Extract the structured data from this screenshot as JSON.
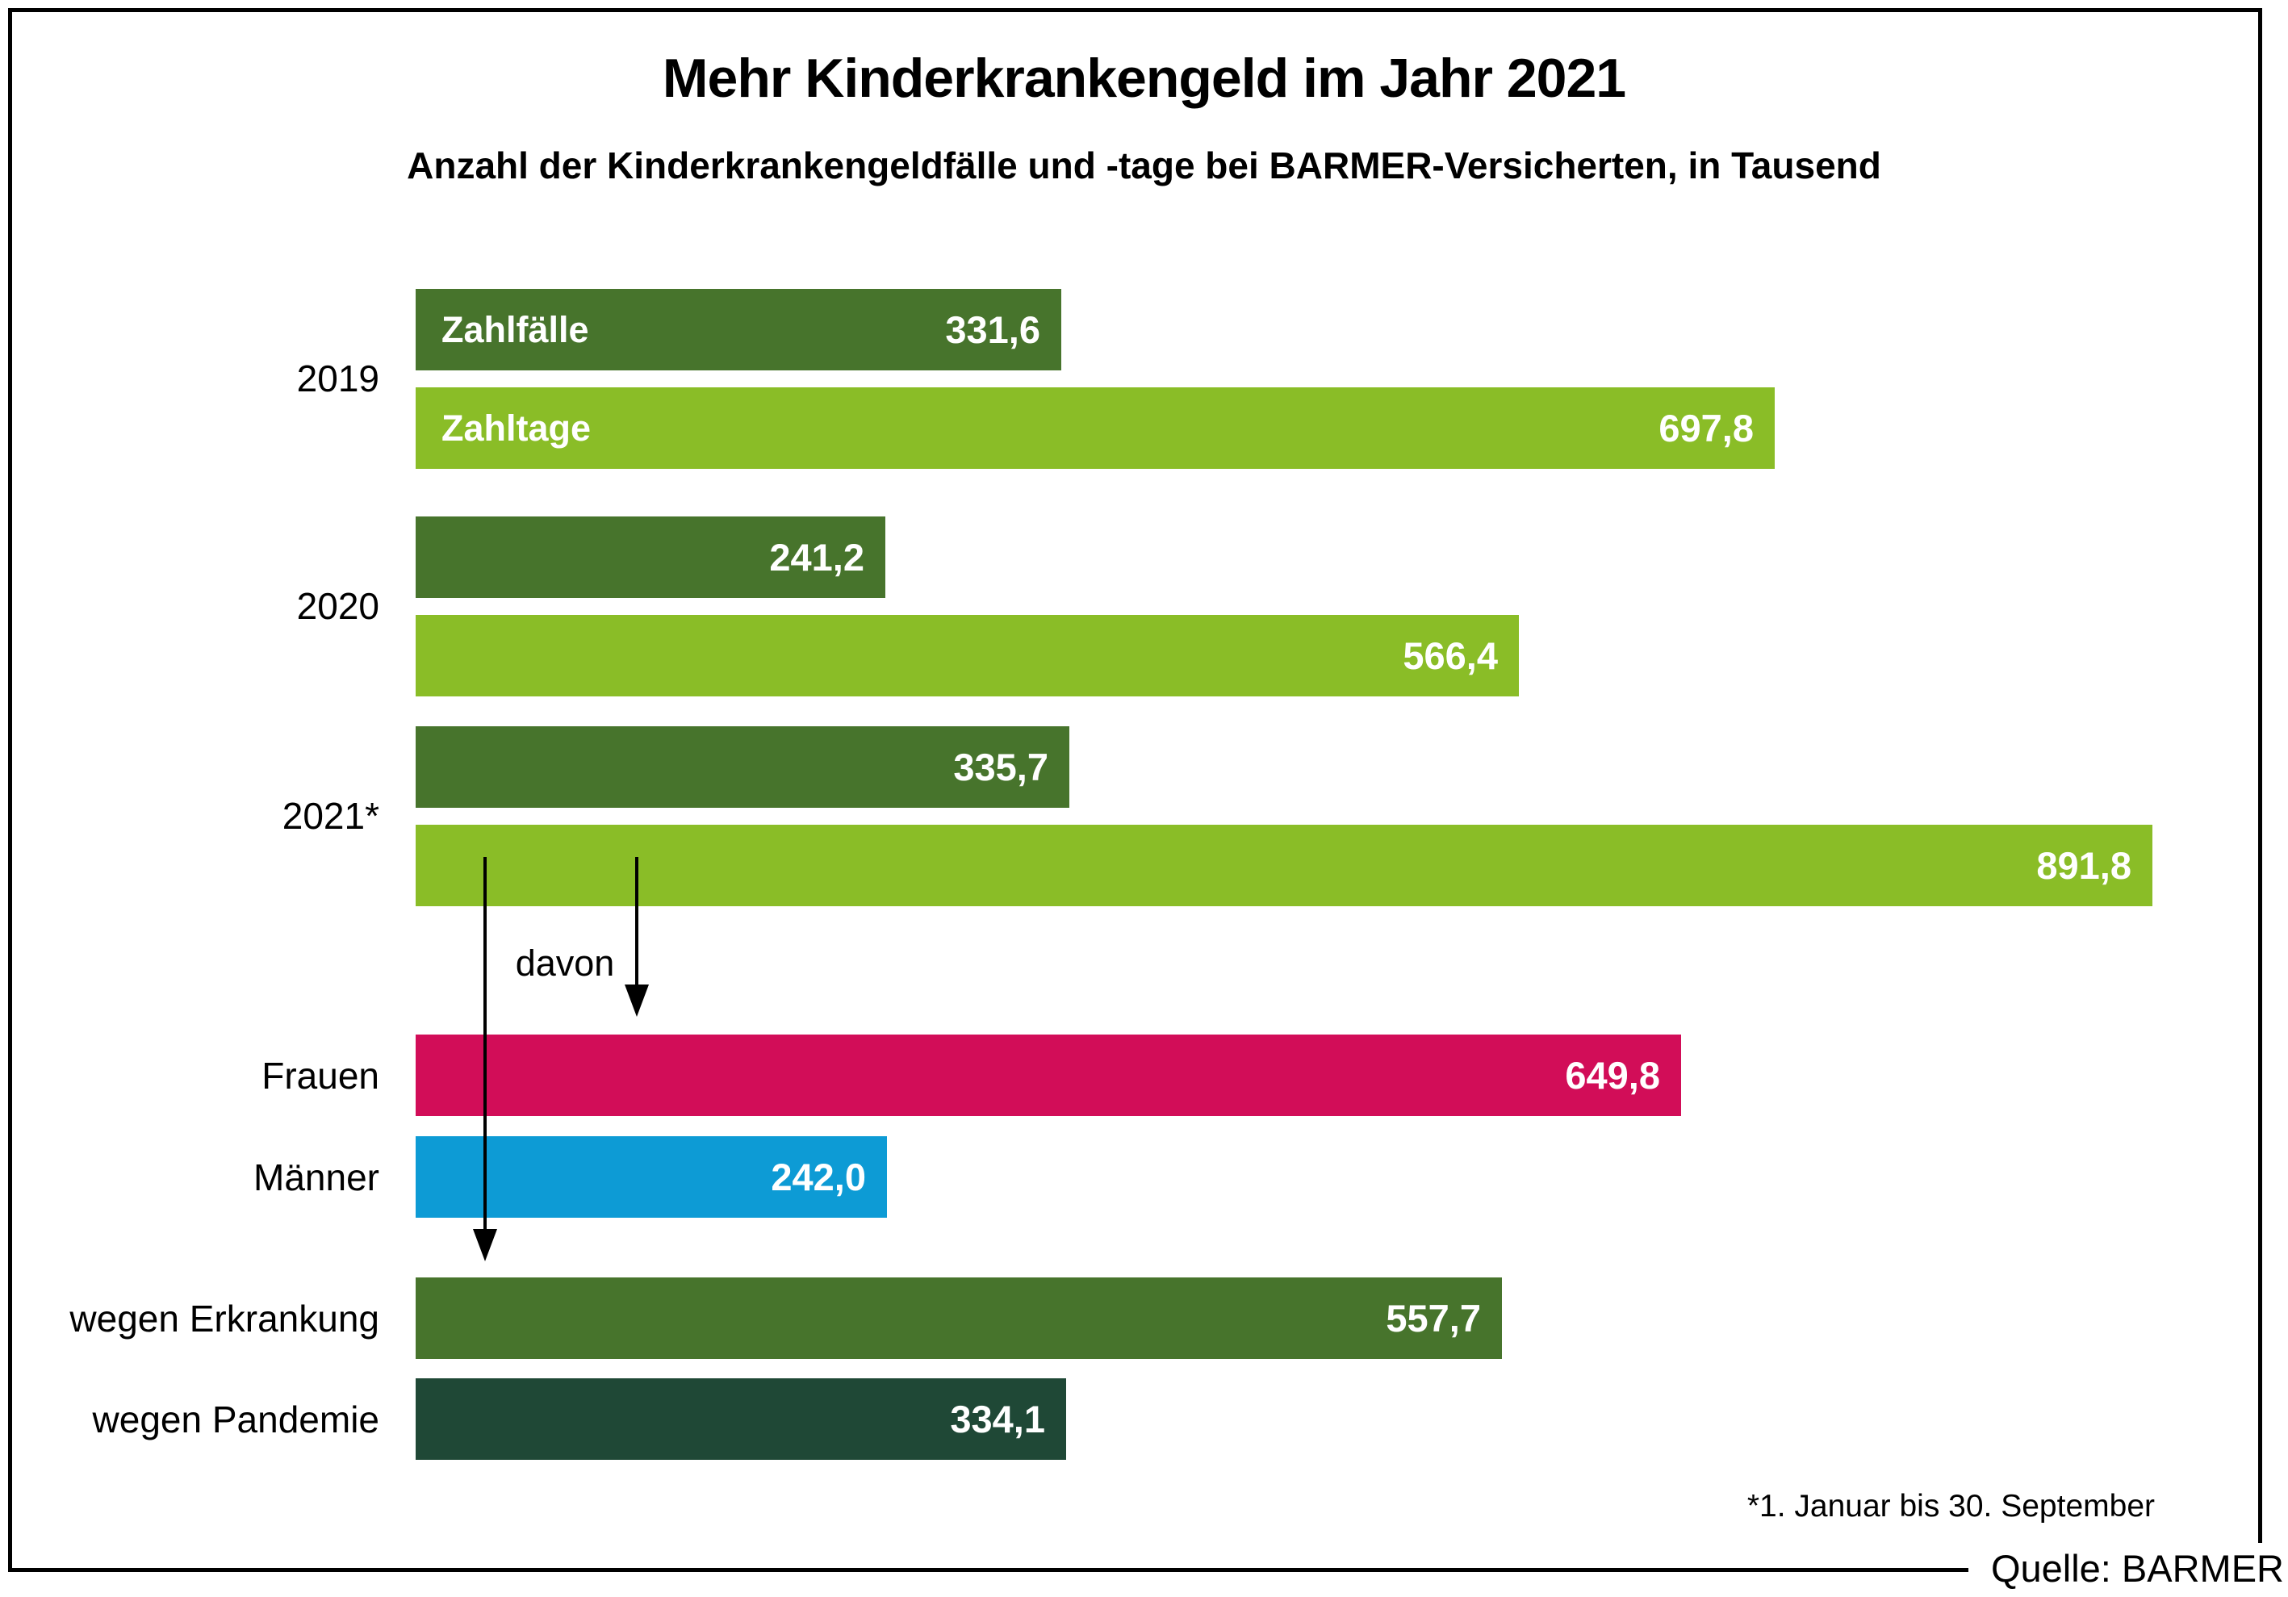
{
  "header": {
    "title": "Mehr Kinderkrankengeld im Jahr 2021",
    "subtitle": "Anzahl der Kinderkrankengeldfälle und -tage bei BARMER-Versicherten, in Tausend"
  },
  "colors": {
    "zahlfaelle_green": "#47742C",
    "zahltage_green": "#8ABD27",
    "frauen_pink": "#D20D58",
    "maenner_blue": "#0D9BD5",
    "erkrankung_green": "#47742C",
    "pandemie_darkgreen": "#1F4836",
    "text_black": "#000000",
    "value_text_white": "#FFFFFF"
  },
  "annotations": {
    "davon_label": "davon",
    "footnote": "*1. Januar bis 30. September",
    "source": "Quelle: BARMER"
  },
  "chart_data": {
    "type": "bar",
    "orientation": "horizontal",
    "unit": "Tausend",
    "value_axis_hidden": true,
    "grid": false,
    "value_range": [
      0,
      950
    ],
    "series_legend": [
      "Zahlfälle",
      "Zahltage"
    ],
    "groups": [
      {
        "category": "2019",
        "bars": [
          {
            "series": "Zahlfälle",
            "value": 331.6,
            "value_label": "331,6",
            "color_key": "zahlfaelle_green",
            "series_label_in_bar": "Zahlfälle"
          },
          {
            "series": "Zahltage",
            "value": 697.8,
            "value_label": "697,8",
            "color_key": "zahltage_green",
            "series_label_in_bar": "Zahltage"
          }
        ]
      },
      {
        "category": "2020",
        "bars": [
          {
            "series": "Zahlfälle",
            "value": 241.2,
            "value_label": "241,2",
            "color_key": "zahlfaelle_green"
          },
          {
            "series": "Zahltage",
            "value": 566.4,
            "value_label": "566,4",
            "color_key": "zahltage_green"
          }
        ]
      },
      {
        "category": "2021*",
        "bars": [
          {
            "series": "Zahlfälle",
            "value": 335.7,
            "value_label": "335,7",
            "color_key": "zahlfaelle_green"
          },
          {
            "series": "Zahltage",
            "value": 891.8,
            "value_label": "891,8",
            "color_key": "zahltage_green"
          }
        ]
      }
    ],
    "breakdown_of_2021_zahltage": [
      {
        "category": "Frauen",
        "value": 649.8,
        "value_label": "649,8",
        "color_key": "frauen_pink"
      },
      {
        "category": "Männer",
        "value": 242.0,
        "value_label": "242,0",
        "color_key": "maenner_blue"
      },
      {
        "category": "wegen Erkrankung",
        "value": 557.7,
        "value_label": "557,7",
        "color_key": "erkrankung_green"
      },
      {
        "category": "wegen Pandemie",
        "value": 334.1,
        "value_label": "334,1",
        "color_key": "pandemie_darkgreen"
      }
    ]
  }
}
